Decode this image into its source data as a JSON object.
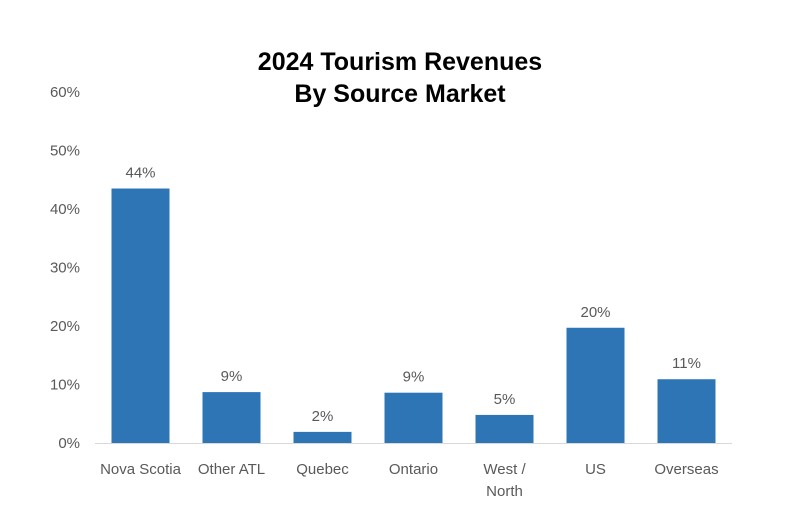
{
  "chart_data": {
    "type": "bar",
    "title": [
      "2024 Tourism Revenues",
      "By Source Market"
    ],
    "categories": [
      [
        "Nova Scotia"
      ],
      [
        "Other ATL"
      ],
      [
        "Quebec"
      ],
      [
        "Ontario"
      ],
      [
        "West /",
        "North"
      ],
      [
        "US"
      ],
      [
        "Overseas"
      ]
    ],
    "values": [
      43.5,
      8.7,
      1.9,
      8.6,
      4.8,
      19.7,
      10.9
    ],
    "data_labels": [
      "44%",
      "9%",
      "2%",
      "9%",
      "5%",
      "20%",
      "11%"
    ],
    "yticks": [
      "0%",
      "10%",
      "20%",
      "30%",
      "40%",
      "50%",
      "60%"
    ],
    "ylim": [
      0,
      60
    ],
    "grid": false,
    "bar_color": "#2E75B6"
  }
}
